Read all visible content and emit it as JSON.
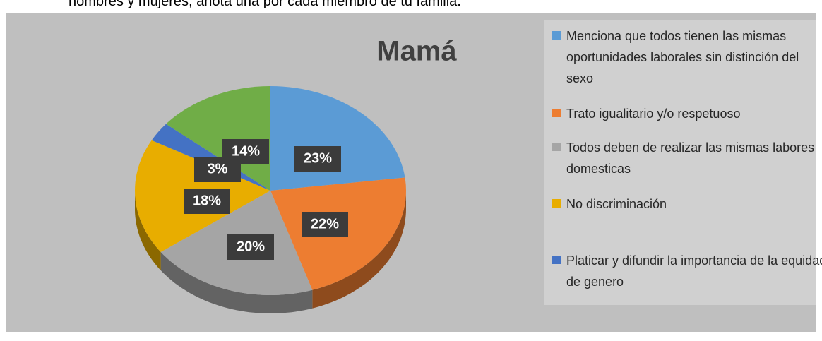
{
  "header": {
    "text": "hombres y mujeres, anota una por cada miembro de tu familia."
  },
  "chart_data": {
    "type": "pie",
    "title": "Mamá",
    "categories": [
      "Menciona que todos tienen las mismas oportunidades laborales sin distinción del sexo",
      "Trato igualitario y/o respetuoso",
      "Todos deben de realizar las mismas labores domesticas",
      "No discriminación",
      "Platicar y difundir la importancia de la equidad de genero",
      null
    ],
    "values": [
      23,
      22,
      20,
      18,
      3,
      14
    ],
    "value_labels": [
      "23%",
      "22%",
      "20%",
      "18%",
      "3%",
      "14%"
    ],
    "colors": [
      "#5b9bd5",
      "#ed7d31",
      "#a5a5a5",
      "#e8ad00",
      "#4472c4",
      "#70ad47"
    ]
  }
}
